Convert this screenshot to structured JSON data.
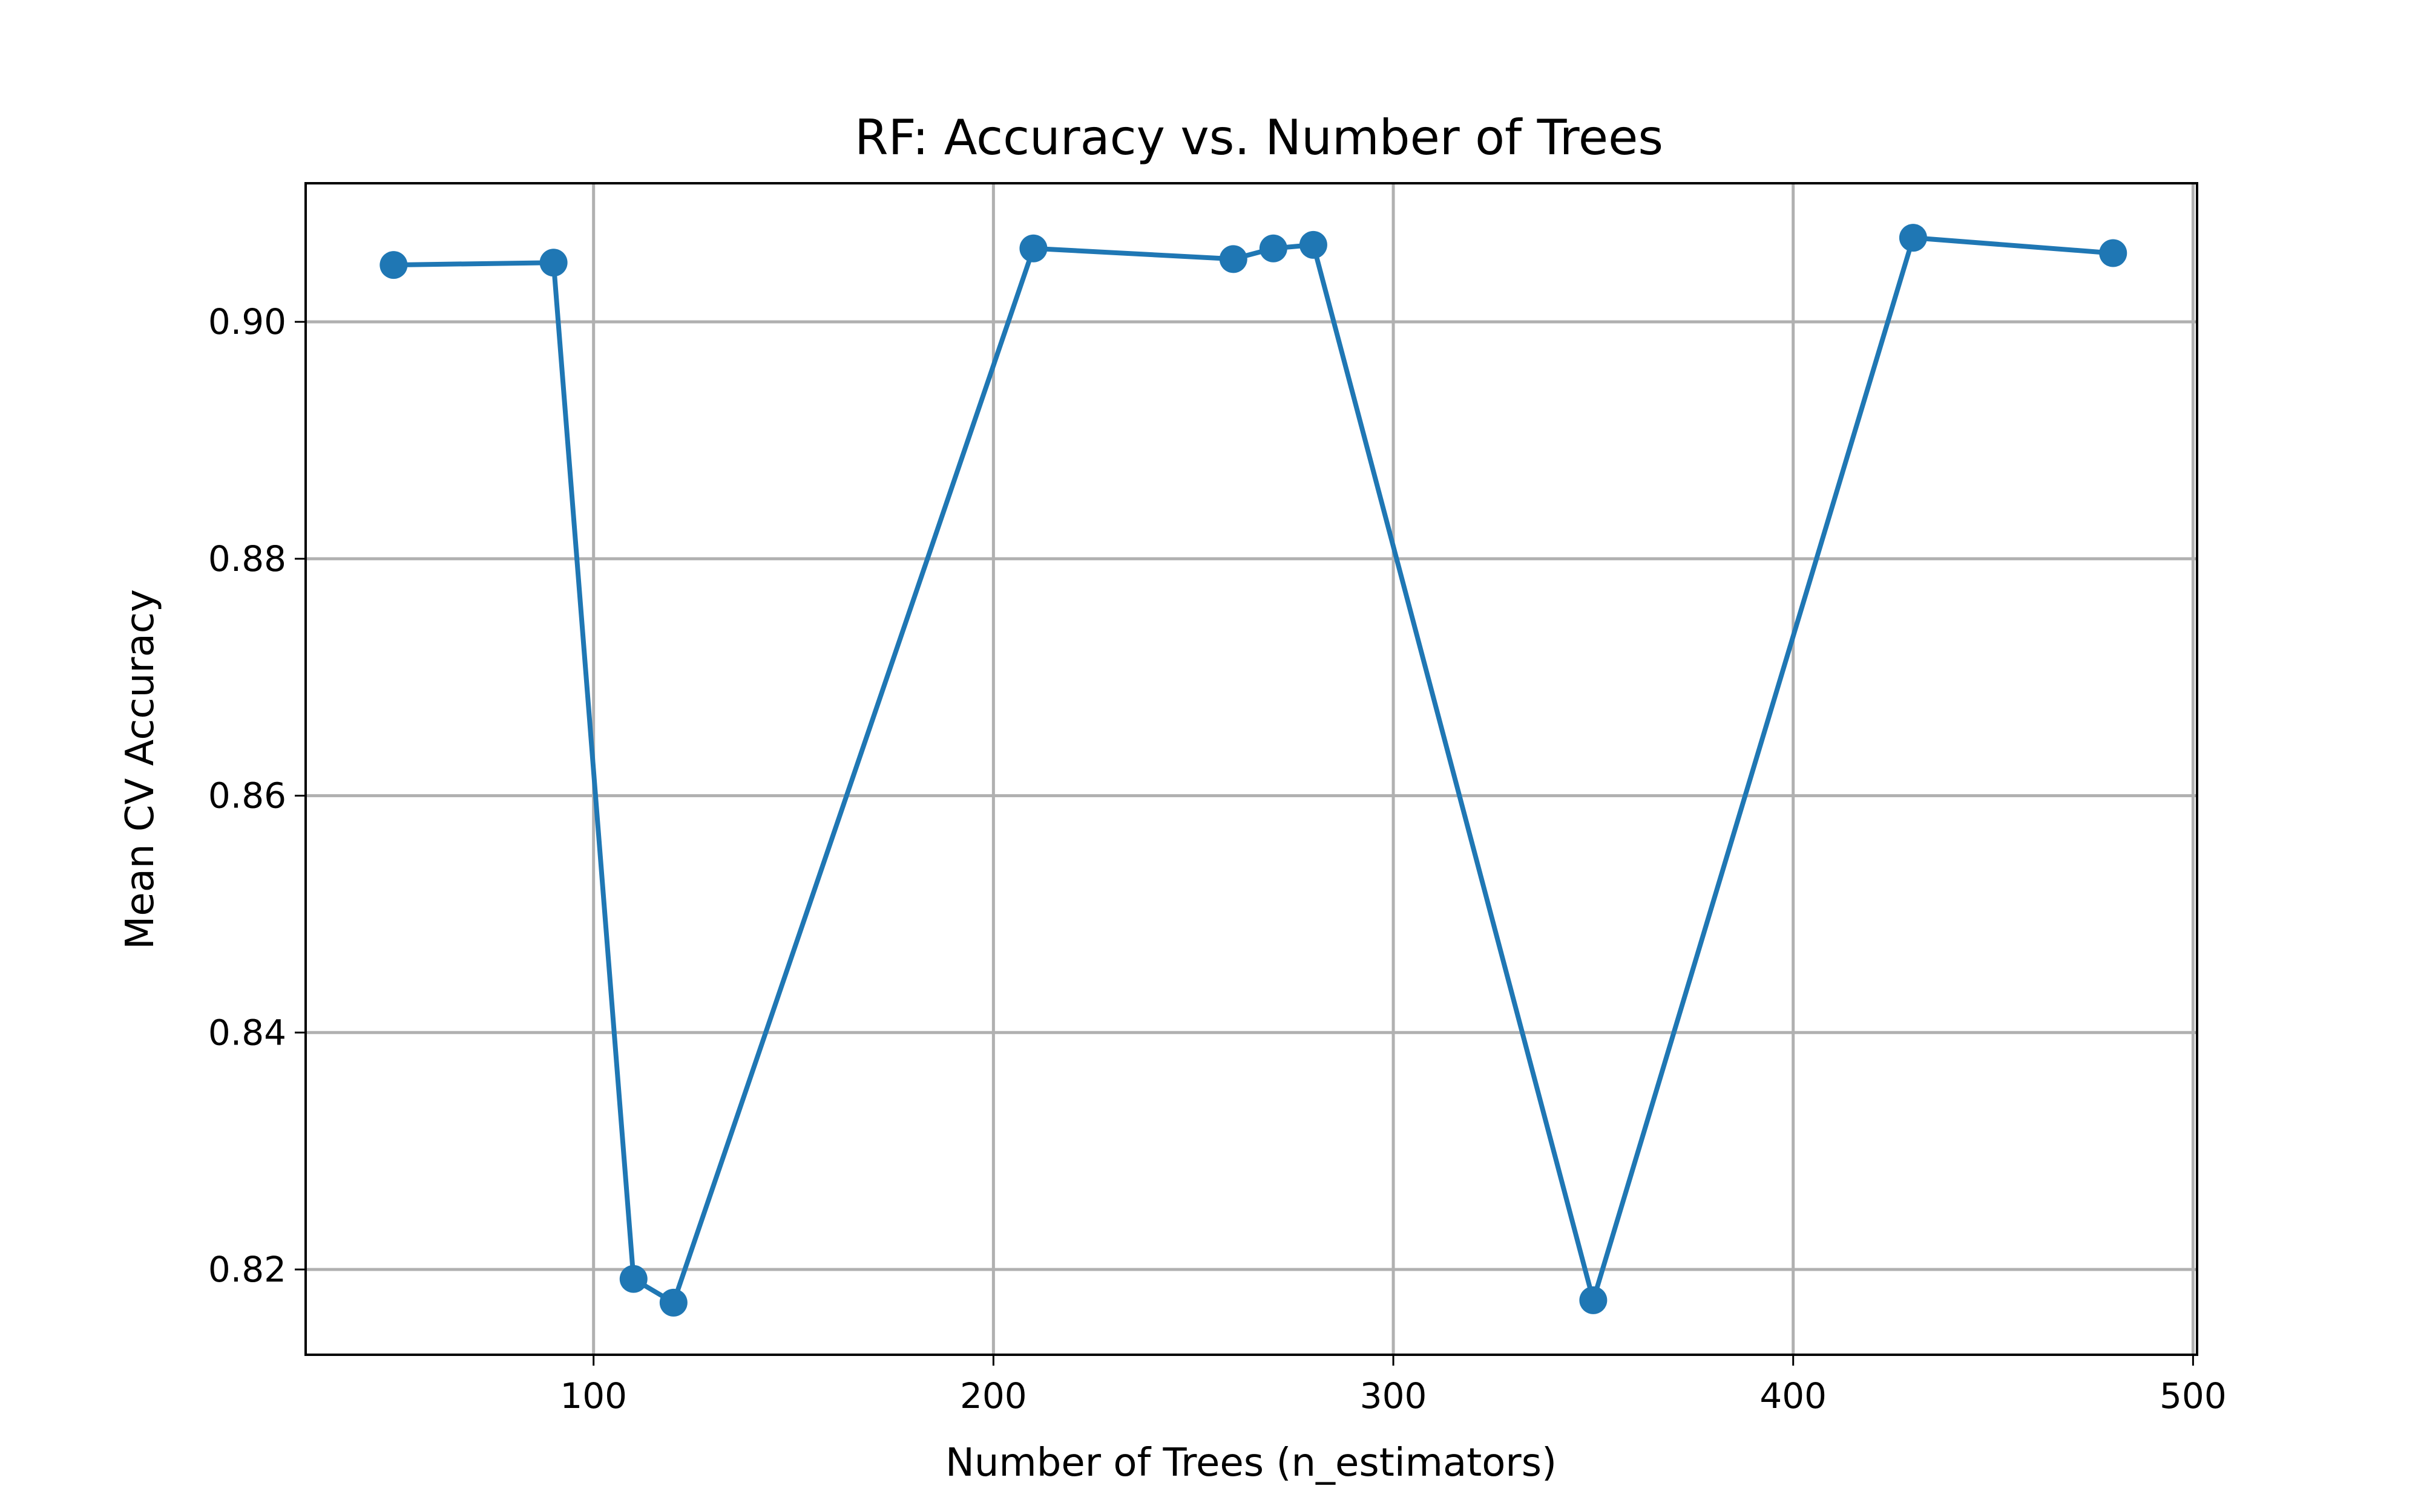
{
  "chart_data": {
    "type": "line",
    "title": "RF: Accuracy vs. Number of Trees",
    "xlabel": "Number of Trees (n_estimators)",
    "ylabel": "Mean CV Accuracy",
    "x": [
      50,
      90,
      110,
      120,
      210,
      260,
      270,
      280,
      350,
      430,
      480
    ],
    "series": [
      {
        "values": [
          0.9048,
          0.905,
          0.8192,
          0.8172,
          0.9062,
          0.9053,
          0.9062,
          0.9065,
          0.8174,
          0.9071,
          0.9058
        ]
      }
    ],
    "xlim": [
      28,
      501
    ],
    "ylim": [
      0.8128,
      0.9117
    ],
    "xticks": [
      100,
      200,
      300,
      400,
      500
    ],
    "yticks": [
      0.82,
      0.84,
      0.86,
      0.88,
      0.9
    ],
    "xtick_labels": [
      "100",
      "200",
      "300",
      "400",
      "500"
    ],
    "ytick_labels": [
      "0.82",
      "0.84",
      "0.86",
      "0.88",
      "0.90"
    ],
    "grid": true,
    "legend": "none",
    "colors": {
      "series": "#1f77b4",
      "grid": "#b0b0b0",
      "axis": "#000000"
    }
  }
}
